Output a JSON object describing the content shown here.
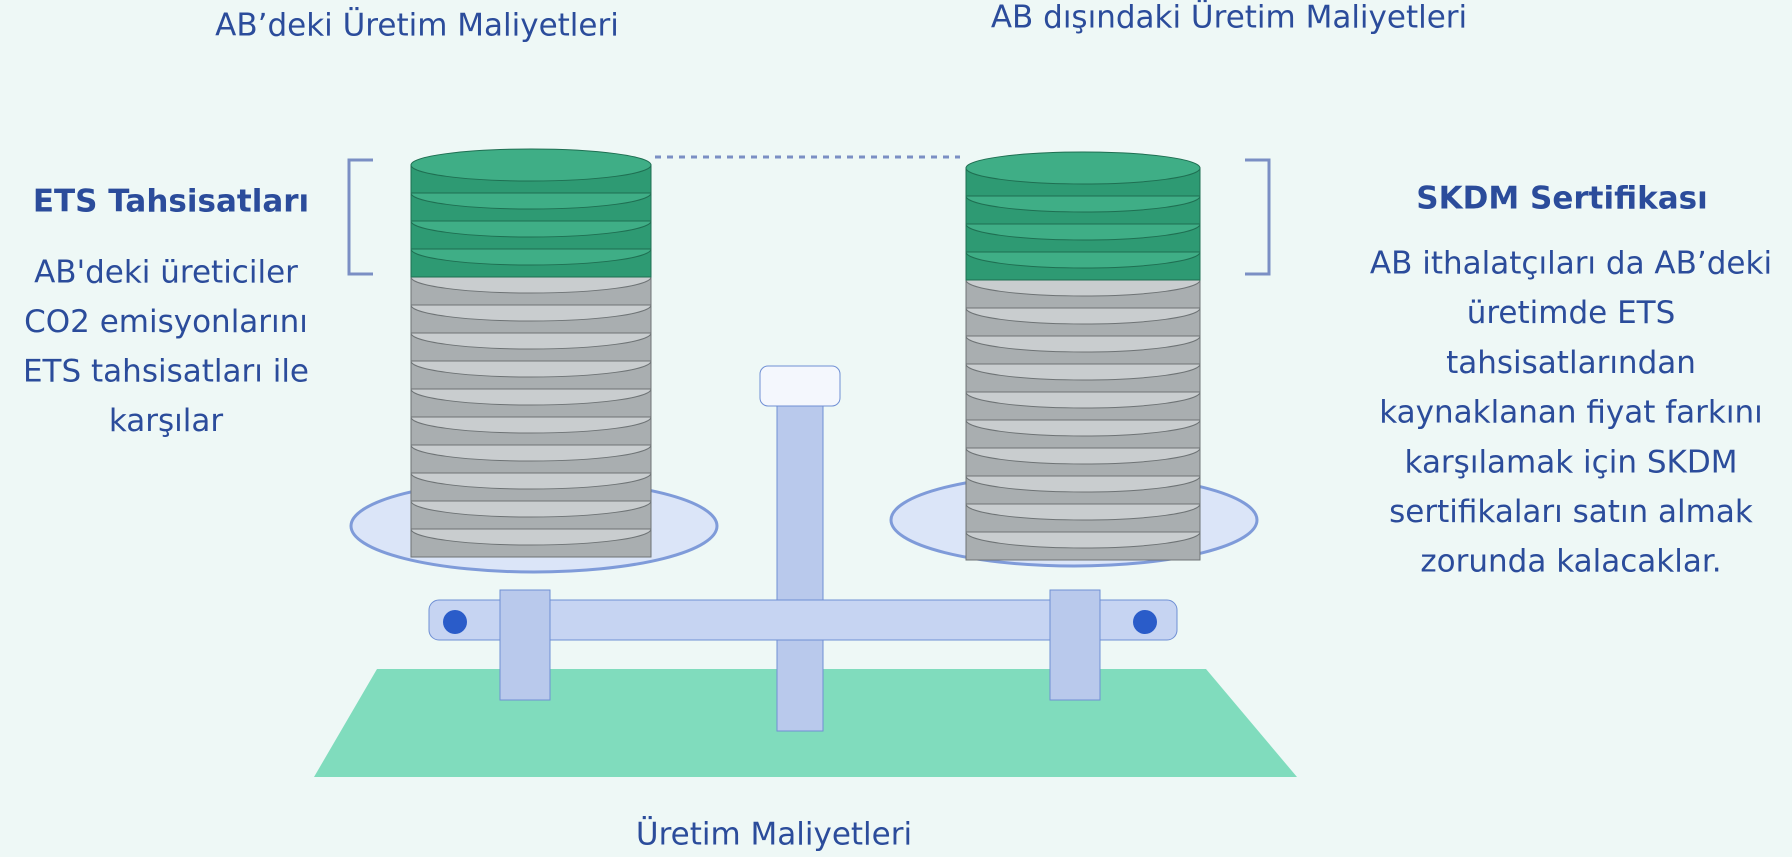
{
  "labels": {
    "left_top": "AB’deki Üretim Maliyetleri",
    "right_top": "AB dışındaki Üretim Maliyetleri",
    "bottom": "Üretim Maliyetleri"
  },
  "left_note": {
    "title": "ETS Tahsisatları",
    "lines": [
      "AB'deki üreticiler",
      "CO2 emisyonlarını",
      "ETS tahsisatları ile",
      "karşılar"
    ]
  },
  "right_note": {
    "title": "SKDM Sertifikası",
    "lines": [
      "AB ithalatçıları da AB’deki",
      "üretimde ETS",
      "tahsisatlarından",
      "kaynaklanan fiyat farkını",
      "karşılamak için SKDM",
      "sertifikaları satın almak",
      "zorunda kalacaklar."
    ]
  }
}
